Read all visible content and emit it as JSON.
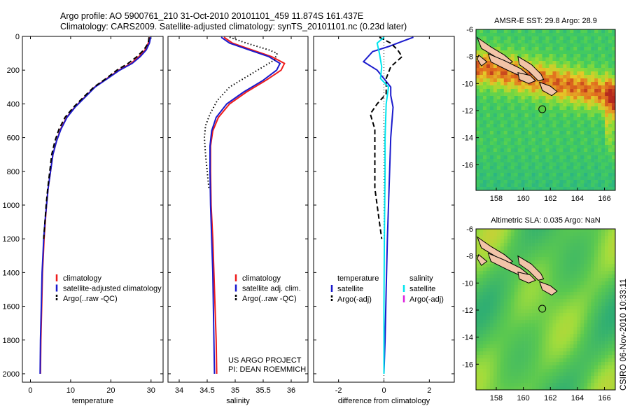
{
  "header": {
    "line1": "Argo profile: AO 5900761_210 31-Oct-2010 20101101_459 11.874S 161.437E",
    "line2": "Climatology: CARS2009. Satellite-adjusted climatology: synTS_20101101.nc (0.23d later)"
  },
  "colors": {
    "red": "#ee1c1c",
    "blue": "#1a1acc",
    "black": "#000000",
    "cyan": "#00e5ee",
    "magenta": "#dd22dd"
  },
  "panel_yticks": [
    "0",
    "200",
    "400",
    "600",
    "800",
    "1000",
    "1200",
    "1400",
    "1600",
    "1800",
    "2000"
  ],
  "chart_data": [
    {
      "type": "line",
      "id": "temperature",
      "xlabel": "temperature",
      "xlim": [
        -2,
        33
      ],
      "xticks": [
        0,
        10,
        20,
        30
      ],
      "ylim": [
        2050,
        0
      ],
      "legend": [
        {
          "label": "climatology",
          "color": "#ee1c1c",
          "dash": "solid"
        },
        {
          "label": "satellite-adjusted climatology",
          "color": "#1a1acc",
          "dash": "solid"
        },
        {
          "label": "Argo(..raw -QC)",
          "color": "#000000",
          "dash": "dash"
        }
      ],
      "series": [
        {
          "color": "#ee1c1c",
          "dash": "solid",
          "points": [
            [
              29.6,
              5
            ],
            [
              29.3,
              40
            ],
            [
              28.5,
              80
            ],
            [
              27,
              120
            ],
            [
              25,
              160
            ],
            [
              22,
              200
            ],
            [
              19,
              250
            ],
            [
              16,
              300
            ],
            [
              13.5,
              360
            ],
            [
              11,
              420
            ],
            [
              9,
              480
            ],
            [
              7.5,
              550
            ],
            [
              6.5,
              620
            ],
            [
              5.6,
              700
            ],
            [
              5,
              800
            ],
            [
              4.4,
              900
            ],
            [
              4,
              1000
            ],
            [
              3.7,
              1100
            ],
            [
              3.4,
              1200
            ],
            [
              3.2,
              1300
            ],
            [
              3,
              1400
            ],
            [
              2.8,
              1600
            ],
            [
              2.6,
              1800
            ],
            [
              2.5,
              2000
            ]
          ]
        },
        {
          "color": "#1a1acc",
          "dash": "solid",
          "points": [
            [
              29.9,
              5
            ],
            [
              29.6,
              40
            ],
            [
              28.8,
              80
            ],
            [
              27.3,
              120
            ],
            [
              25.3,
              160
            ],
            [
              22.2,
              200
            ],
            [
              19.2,
              250
            ],
            [
              16.1,
              300
            ],
            [
              13.6,
              360
            ],
            [
              11.1,
              420
            ],
            [
              9.1,
              480
            ],
            [
              7.6,
              550
            ],
            [
              6.5,
              620
            ],
            [
              5.6,
              700
            ],
            [
              5,
              800
            ],
            [
              4.4,
              900
            ],
            [
              4,
              1000
            ],
            [
              3.6,
              1100
            ],
            [
              3.3,
              1200
            ],
            [
              3.1,
              1300
            ],
            [
              2.9,
              1400
            ],
            [
              2.7,
              1600
            ],
            [
              2.5,
              1800
            ],
            [
              2.4,
              2000
            ]
          ]
        },
        {
          "color": "#000000",
          "dash": "dash",
          "points": [
            [
              29.5,
              5
            ],
            [
              29.3,
              40
            ],
            [
              28.2,
              80
            ],
            [
              26.5,
              120
            ],
            [
              24.3,
              160
            ],
            [
              21.5,
              200
            ],
            [
              18.8,
              250
            ],
            [
              15.8,
              300
            ],
            [
              13.2,
              360
            ],
            [
              10.7,
              420
            ],
            [
              8.6,
              480
            ],
            [
              7.1,
              550
            ],
            [
              6.1,
              620
            ],
            [
              5.3,
              700
            ],
            [
              4.8,
              800
            ],
            [
              4.3,
              900
            ],
            [
              3.9,
              1000
            ],
            [
              3.6,
              1100
            ],
            [
              3.3,
              1200
            ]
          ]
        }
      ]
    },
    {
      "type": "line",
      "id": "salinity",
      "xlabel": "salinity",
      "xlim": [
        33.8,
        36.3
      ],
      "xticks": [
        34,
        34.5,
        35,
        35.5,
        36
      ],
      "ylim": [
        2050,
        0
      ],
      "legend": [
        {
          "label": "climatology",
          "color": "#ee1c1c",
          "dash": "solid"
        },
        {
          "label": "satellite adj. clim.",
          "color": "#1a1acc",
          "dash": "solid"
        },
        {
          "label": "Argo(..raw -QC)",
          "color": "#000000",
          "dash": "dash"
        }
      ],
      "annotation": [
        "US ARGO PROJECT",
        "PI: DEAN ROEMMICH"
      ],
      "series": [
        {
          "color": "#ee1c1c",
          "dash": "solid",
          "points": [
            [
              34.8,
              5
            ],
            [
              34.95,
              40
            ],
            [
              35.3,
              80
            ],
            [
              35.65,
              120
            ],
            [
              35.88,
              160
            ],
            [
              35.82,
              200
            ],
            [
              35.55,
              260
            ],
            [
              35.2,
              330
            ],
            [
              34.9,
              400
            ],
            [
              34.7,
              480
            ],
            [
              34.6,
              560
            ],
            [
              34.56,
              650
            ],
            [
              34.56,
              800
            ],
            [
              34.57,
              1000
            ],
            [
              34.6,
              1200
            ],
            [
              34.62,
              1400
            ],
            [
              34.64,
              1600
            ],
            [
              34.66,
              1800
            ],
            [
              34.67,
              2000
            ]
          ]
        },
        {
          "color": "#1a1acc",
          "dash": "solid",
          "points": [
            [
              34.75,
              5
            ],
            [
              34.9,
              40
            ],
            [
              35.25,
              80
            ],
            [
              35.6,
              120
            ],
            [
              35.8,
              160
            ],
            [
              35.74,
              200
            ],
            [
              35.5,
              260
            ],
            [
              35.15,
              330
            ],
            [
              34.85,
              400
            ],
            [
              34.66,
              480
            ],
            [
              34.58,
              560
            ],
            [
              34.55,
              650
            ],
            [
              34.55,
              800
            ],
            [
              34.56,
              1000
            ],
            [
              34.58,
              1200
            ],
            [
              34.6,
              1400
            ],
            [
              34.61,
              1600
            ],
            [
              34.62,
              1800
            ],
            [
              34.63,
              2000
            ]
          ]
        },
        {
          "color": "#000000",
          "dash": "dot",
          "points": [
            [
              34.9,
              5
            ],
            [
              35.2,
              40
            ],
            [
              35.6,
              80
            ],
            [
              35.75,
              100
            ],
            [
              35.7,
              140
            ],
            [
              35.5,
              180
            ],
            [
              35.2,
              240
            ],
            [
              34.9,
              300
            ],
            [
              34.68,
              380
            ],
            [
              34.55,
              460
            ],
            [
              34.47,
              530
            ],
            [
              34.45,
              600
            ],
            [
              34.47,
              700
            ],
            [
              34.5,
              800
            ],
            [
              34.53,
              900
            ]
          ]
        }
      ]
    },
    {
      "type": "line",
      "id": "difference",
      "xlabel": "difference from climatology",
      "xlim": [
        -3.1,
        3.1
      ],
      "xticks": [
        -2,
        0,
        2
      ],
      "ylim": [
        2050,
        0
      ],
      "legend": [
        {
          "label": "temperature",
          "color": "",
          "dash": "none"
        },
        {
          "label": "satellite",
          "color": "#1a1acc",
          "dash": "solid"
        },
        {
          "label": "Argo(-adj)",
          "color": "#000000",
          "dash": "dash"
        },
        {
          "label": "salinity",
          "color": "",
          "dash": "none"
        },
        {
          "label": "satellite",
          "color": "#00e5ee",
          "dash": "solid"
        },
        {
          "label": "Argo(-adj)",
          "color": "#dd22dd",
          "dash": "solid"
        }
      ],
      "series": [
        {
          "color": "#1a1acc",
          "dash": "solid",
          "points": [
            [
              1.3,
              5
            ],
            [
              0.8,
              30
            ],
            [
              0.2,
              60
            ],
            [
              -0.5,
              90
            ],
            [
              -0.9,
              150
            ],
            [
              -0.3,
              200
            ],
            [
              0.3,
              300
            ],
            [
              0.3,
              350
            ],
            [
              0.4,
              420
            ],
            [
              0.3,
              600
            ],
            [
              0.25,
              800
            ],
            [
              0.2,
              1000
            ],
            [
              0.15,
              1200
            ],
            [
              0.1,
              1500
            ],
            [
              0.05,
              1800
            ],
            [
              0,
              2000
            ]
          ]
        },
        {
          "color": "#000000",
          "dash": "dash",
          "points": [
            [
              -0.2,
              5
            ],
            [
              0.3,
              40
            ],
            [
              0.6,
              80
            ],
            [
              0.8,
              120
            ],
            [
              0.3,
              180
            ],
            [
              0.1,
              250
            ],
            [
              0.1,
              340
            ],
            [
              -0.3,
              400
            ],
            [
              -0.6,
              460
            ],
            [
              -0.4,
              550
            ],
            [
              -0.4,
              700
            ],
            [
              -0.4,
              900
            ],
            [
              -0.2,
              1100
            ],
            [
              -0.1,
              1200
            ]
          ]
        },
        {
          "color": "#00e5ee",
          "dash": "solid",
          "points": [
            [
              0,
              5
            ],
            [
              -0.3,
              40
            ],
            [
              -0.2,
              100
            ],
            [
              -0.1,
              180
            ],
            [
              -0.15,
              250
            ],
            [
              0.2,
              300
            ],
            [
              0.1,
              400
            ],
            [
              0.05,
              600
            ],
            [
              0.05,
              800
            ],
            [
              0.02,
              1200
            ],
            [
              0,
              1600
            ],
            [
              0,
              2000
            ]
          ]
        }
      ]
    },
    {
      "type": "heatmap",
      "id": "sst",
      "title": "AMSR-E SST: 29.8 Argo: 28.9",
      "xlim": [
        156.5,
        166.8
      ],
      "ylim": [
        -17.9,
        -6
      ],
      "xticks": [
        158,
        160,
        162,
        164,
        166
      ],
      "yticks": [
        -6,
        -8,
        -10,
        -12,
        -14,
        -16
      ],
      "marker": [
        161.4,
        -11.9
      ]
    },
    {
      "type": "heatmap",
      "id": "sla",
      "title": "Altimetric SLA: 0.035 Argo: NaN",
      "xlim": [
        156.5,
        166.8
      ],
      "ylim": [
        -17.9,
        -6
      ],
      "xticks": [
        158,
        160,
        162,
        164,
        166
      ],
      "yticks": [
        -6,
        -8,
        -10,
        -12,
        -14,
        -16
      ],
      "marker": [
        161.4,
        -11.9
      ]
    }
  ],
  "footer": {
    "stamp": "CSIRO 06-Nov-2010 10:33:11"
  }
}
